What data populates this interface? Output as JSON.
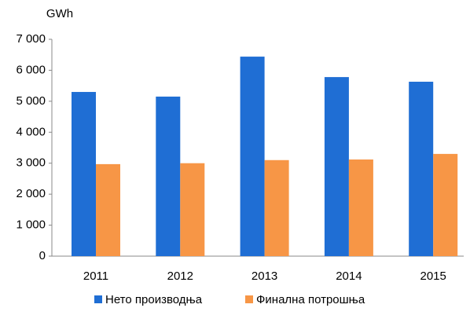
{
  "chart_data": {
    "type": "bar",
    "y_axis_label": "GWh",
    "categories": [
      "2011",
      "2012",
      "2013",
      "2014",
      "2015"
    ],
    "series": [
      {
        "name": "Нето производња",
        "color": "#1f6ed4",
        "values": [
          5300,
          5150,
          6440,
          5780,
          5630
        ]
      },
      {
        "name": "Финална потрошња",
        "color": "#f79646",
        "values": [
          2970,
          3000,
          3100,
          3120,
          3300
        ]
      }
    ],
    "ylim": [
      0,
      7000
    ],
    "yticks": [
      0,
      {
        "value": 1000,
        "label": "1 000"
      },
      {
        "value": 2000,
        "label": "2 000"
      },
      {
        "value": 3000,
        "label": "3 000"
      },
      {
        "value": 4000,
        "label": "4 000"
      },
      {
        "value": 5000,
        "label": "5 000"
      },
      {
        "value": 6000,
        "label": "6 000"
      },
      {
        "value": 7000,
        "label": "7 000"
      }
    ],
    "grid": false,
    "legend": "bottom"
  }
}
